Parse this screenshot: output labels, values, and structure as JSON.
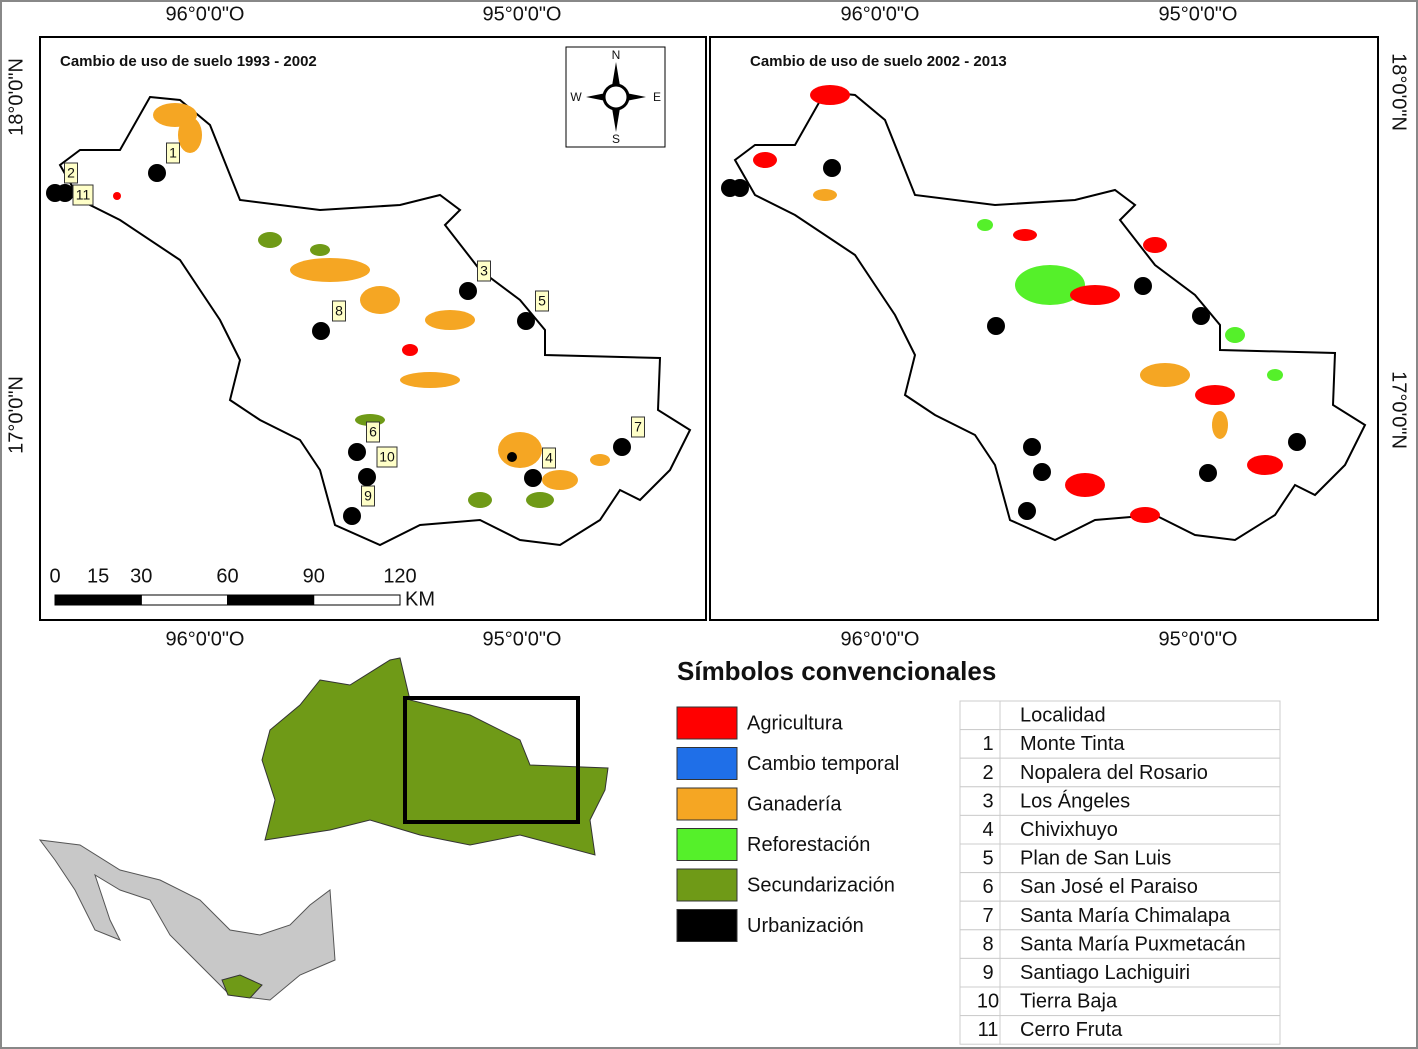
{
  "coordinates": {
    "longitude": [
      "96°0'0\"O",
      "95°0'0\"O"
    ],
    "latitude": [
      "18°0'0\"N",
      "17°0'0\"N"
    ]
  },
  "maps": [
    {
      "title": "Cambio de uso de suelo 1993 - 2002"
    },
    {
      "title": "Cambio de uso de suelo 2002 - 2013"
    }
  ],
  "compass": {
    "north": "N",
    "south": "S",
    "east": "E",
    "west": "W"
  },
  "scale_bar": {
    "ticks": [
      0,
      15,
      30,
      60,
      90,
      120
    ],
    "unit": "KM"
  },
  "point_labels": [
    "1",
    "2",
    "3",
    "4",
    "5",
    "6",
    "7",
    "8",
    "9",
    "10",
    "11"
  ],
  "legend": {
    "title": "Símbolos convencionales",
    "items": [
      {
        "label": "Agricultura",
        "color": "#ff0000"
      },
      {
        "label": "Cambio temporal",
        "color": "#1f6fe8"
      },
      {
        "label": "Ganadería",
        "color": "#f5a623"
      },
      {
        "label": "Reforestación",
        "color": "#55f02a"
      },
      {
        "label": "Secundarización",
        "color": "#6f9a17"
      },
      {
        "label": "Urbanización",
        "color": "#000000"
      }
    ]
  },
  "table": {
    "header": "Localidad",
    "rows": [
      [
        "1",
        "Monte Tinta"
      ],
      [
        "2",
        "Nopalera del Rosario"
      ],
      [
        "3",
        "Los Ángeles"
      ],
      [
        "4",
        "Chivixhuyo"
      ],
      [
        "5",
        "Plan de San Luis"
      ],
      [
        "6",
        "San José el Paraiso"
      ],
      [
        "7",
        "Santa María Chimalapa"
      ],
      [
        "8",
        "Santa María Puxmetacán"
      ],
      [
        "9",
        "Santiago Lachiguiri"
      ],
      [
        "10",
        "Tierra Baja"
      ],
      [
        "11",
        "Cerro Fruta"
      ]
    ]
  }
}
